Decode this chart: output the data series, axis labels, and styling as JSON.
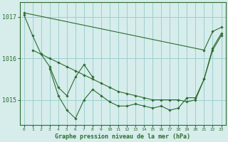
{
  "title": "Graphe pression niveau de la mer (hPa)",
  "bg_color": "#d6edec",
  "grid_color": "#9ecfcf",
  "line_color": "#2d6b2d",
  "x_ticks": [
    0,
    1,
    2,
    3,
    4,
    5,
    6,
    7,
    8,
    9,
    10,
    11,
    12,
    13,
    14,
    15,
    16,
    17,
    18,
    19,
    20,
    21,
    22,
    23
  ],
  "y_ticks": [
    1015,
    1016,
    1017
  ],
  "ylim": [
    1014.4,
    1017.35
  ],
  "xlim": [
    -0.5,
    23.5
  ],
  "series": [
    [
      1017.1,
      null,
      null,
      null,
      null,
      null,
      null,
      null,
      null,
      null,
      null,
      null,
      null,
      null,
      null,
      null,
      null,
      null,
      null,
      null,
      null,
      1016.2,
      1016.65,
      1016.75
    ],
    [
      null,
      1016.2,
      1016.1,
      1015.8,
      1015.3,
      1015.1,
      1015.55,
      1015.85,
      1015.55,
      null,
      null,
      null,
      null,
      null,
      null,
      null,
      null,
      null,
      null,
      null,
      null,
      null,
      null,
      null
    ],
    [
      null,
      null,
      null,
      1015.75,
      1015.1,
      1014.75,
      1014.55,
      1015.0,
      1015.25,
      1015.1,
      1014.95,
      1014.85,
      1014.85,
      1014.9,
      1014.85,
      1014.8,
      1014.85,
      1014.75,
      1014.8,
      1015.05,
      1015.05,
      1015.5,
      1016.25,
      1016.6
    ],
    [
      1017.05,
      1016.55,
      1016.1,
      1016.0,
      1015.9,
      1015.8,
      1015.7,
      1015.6,
      1015.5,
      1015.4,
      1015.3,
      1015.2,
      1015.15,
      1015.1,
      1015.05,
      1015.0,
      1015.0,
      1015.0,
      1015.0,
      1014.95,
      1015.0,
      1015.5,
      1016.2,
      1016.55
    ]
  ]
}
